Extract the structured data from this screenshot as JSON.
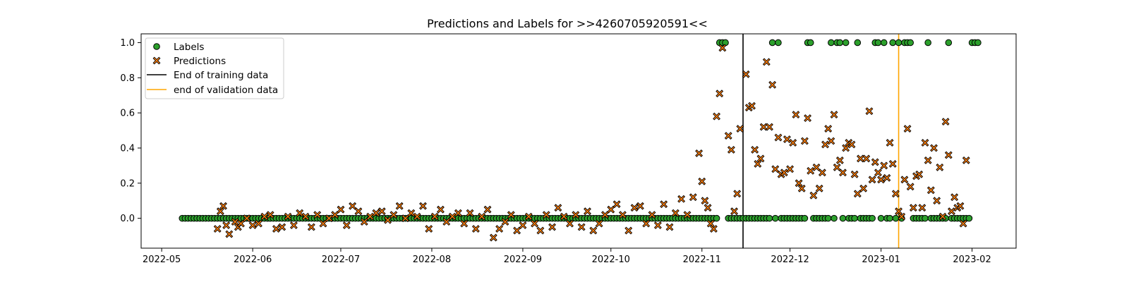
{
  "chart_data": {
    "type": "scatter",
    "title": "Predictions and Labels for >>4260705920591<<",
    "xlabel": "",
    "ylabel": "",
    "xlim": [
      "2022-04-24",
      "2023-02-16"
    ],
    "ylim": [
      -0.17,
      1.05
    ],
    "x_ticks": [
      "2022-05",
      "2022-06",
      "2022-07",
      "2022-08",
      "2022-09",
      "2022-10",
      "2022-11",
      "2022-12",
      "2023-01",
      "2023-02"
    ],
    "y_ticks": [
      "0.0",
      "0.2",
      "0.4",
      "0.6",
      "0.8",
      "1.0"
    ],
    "legend_position": "top-left",
    "grid": false,
    "colors": {
      "labels": "#2ca02c",
      "predictions": "#ff7f0e",
      "training_line": "#000000",
      "validation_line": "#ffa500"
    },
    "vlines": [
      {
        "name": "End of training data",
        "x": "2022-11-15"
      },
      {
        "name": "end of validation data",
        "x": "2023-01-07"
      }
    ],
    "label_date_range": [
      "2022-05-08",
      "2023-02-03"
    ],
    "label_one_dates": [
      "2022-11-07",
      "2022-11-08",
      "2022-11-09",
      "2022-11-25",
      "2022-11-27",
      "2022-12-07",
      "2022-12-08",
      "2022-12-15",
      "2022-12-17",
      "2022-12-18",
      "2022-12-20",
      "2022-12-24",
      "2022-12-30",
      "2022-12-31",
      "2023-01-02",
      "2023-01-05",
      "2023-01-07",
      "2023-01-09",
      "2023-01-10",
      "2023-01-11",
      "2023-01-17",
      "2023-01-24",
      "2023-02-01",
      "2023-02-02",
      "2023-02-03"
    ],
    "series": [
      {
        "name": "Labels",
        "marker": "circle",
        "points": []
      },
      {
        "name": "Predictions",
        "marker": "x",
        "points": [
          [
            "2022-05-20",
            -0.06
          ],
          [
            "2022-05-21",
            0.04
          ],
          [
            "2022-05-22",
            0.07
          ],
          [
            "2022-05-23",
            -0.04
          ],
          [
            "2022-05-24",
            -0.09
          ],
          [
            "2022-05-26",
            -0.02
          ],
          [
            "2022-05-27",
            -0.05
          ],
          [
            "2022-05-28",
            -0.03
          ],
          [
            "2022-05-30",
            0.0
          ],
          [
            "2022-06-01",
            -0.04
          ],
          [
            "2022-06-03",
            -0.03
          ],
          [
            "2022-06-05",
            0.01
          ],
          [
            "2022-06-07",
            0.02
          ],
          [
            "2022-06-09",
            -0.06
          ],
          [
            "2022-06-11",
            -0.05
          ],
          [
            "2022-06-13",
            0.01
          ],
          [
            "2022-06-15",
            -0.04
          ],
          [
            "2022-06-17",
            0.03
          ],
          [
            "2022-06-19",
            0.01
          ],
          [
            "2022-06-21",
            -0.05
          ],
          [
            "2022-06-23",
            0.02
          ],
          [
            "2022-06-25",
            -0.03
          ],
          [
            "2022-06-27",
            0.0
          ],
          [
            "2022-06-29",
            0.02
          ],
          [
            "2022-07-01",
            0.05
          ],
          [
            "2022-07-03",
            -0.04
          ],
          [
            "2022-07-05",
            0.07
          ],
          [
            "2022-07-07",
            0.04
          ],
          [
            "2022-07-09",
            -0.02
          ],
          [
            "2022-07-11",
            0.01
          ],
          [
            "2022-07-13",
            0.03
          ],
          [
            "2022-07-15",
            0.04
          ],
          [
            "2022-07-17",
            -0.01
          ],
          [
            "2022-07-19",
            0.02
          ],
          [
            "2022-07-21",
            0.07
          ],
          [
            "2022-07-23",
            0.0
          ],
          [
            "2022-07-25",
            0.03
          ],
          [
            "2022-07-27",
            0.01
          ],
          [
            "2022-07-29",
            0.07
          ],
          [
            "2022-07-31",
            -0.06
          ],
          [
            "2022-08-02",
            0.01
          ],
          [
            "2022-08-04",
            0.05
          ],
          [
            "2022-08-06",
            -0.02
          ],
          [
            "2022-08-08",
            0.01
          ],
          [
            "2022-08-10",
            0.03
          ],
          [
            "2022-08-12",
            -0.03
          ],
          [
            "2022-08-14",
            0.03
          ],
          [
            "2022-08-16",
            -0.06
          ],
          [
            "2022-08-18",
            0.01
          ],
          [
            "2022-08-20",
            0.05
          ],
          [
            "2022-08-22",
            -0.11
          ],
          [
            "2022-08-24",
            -0.06
          ],
          [
            "2022-08-26",
            -0.02
          ],
          [
            "2022-08-28",
            0.02
          ],
          [
            "2022-08-30",
            -0.07
          ],
          [
            "2022-09-01",
            -0.04
          ],
          [
            "2022-09-03",
            0.01
          ],
          [
            "2022-09-05",
            -0.03
          ],
          [
            "2022-09-07",
            -0.07
          ],
          [
            "2022-09-09",
            0.02
          ],
          [
            "2022-09-11",
            -0.05
          ],
          [
            "2022-09-13",
            0.06
          ],
          [
            "2022-09-15",
            0.01
          ],
          [
            "2022-09-17",
            -0.03
          ],
          [
            "2022-09-19",
            0.02
          ],
          [
            "2022-09-21",
            -0.05
          ],
          [
            "2022-09-23",
            0.04
          ],
          [
            "2022-09-25",
            -0.07
          ],
          [
            "2022-09-27",
            -0.03
          ],
          [
            "2022-09-29",
            0.02
          ],
          [
            "2022-10-01",
            0.05
          ],
          [
            "2022-10-03",
            0.08
          ],
          [
            "2022-10-05",
            0.02
          ],
          [
            "2022-10-07",
            -0.07
          ],
          [
            "2022-10-09",
            0.06
          ],
          [
            "2022-10-11",
            0.07
          ],
          [
            "2022-10-13",
            -0.03
          ],
          [
            "2022-10-15",
            0.02
          ],
          [
            "2022-10-17",
            -0.04
          ],
          [
            "2022-10-19",
            0.08
          ],
          [
            "2022-10-21",
            -0.05
          ],
          [
            "2022-10-23",
            0.03
          ],
          [
            "2022-10-25",
            0.11
          ],
          [
            "2022-10-27",
            0.02
          ],
          [
            "2022-10-29",
            0.12
          ],
          [
            "2022-10-31",
            0.37
          ],
          [
            "2022-11-01",
            0.21
          ],
          [
            "2022-11-02",
            0.1
          ],
          [
            "2022-11-03",
            0.06
          ],
          [
            "2022-11-04",
            -0.03
          ],
          [
            "2022-11-05",
            -0.06
          ],
          [
            "2022-11-06",
            0.58
          ],
          [
            "2022-11-07",
            0.71
          ],
          [
            "2022-11-08",
            0.97
          ],
          [
            "2022-11-10",
            0.47
          ],
          [
            "2022-11-11",
            0.39
          ],
          [
            "2022-11-12",
            0.04
          ],
          [
            "2022-11-13",
            0.14
          ],
          [
            "2022-11-14",
            0.51
          ],
          [
            "2022-11-16",
            0.82
          ],
          [
            "2022-11-17",
            0.63
          ],
          [
            "2022-11-18",
            0.64
          ],
          [
            "2022-11-19",
            0.39
          ],
          [
            "2022-11-20",
            0.31
          ],
          [
            "2022-11-21",
            0.34
          ],
          [
            "2022-11-22",
            0.52
          ],
          [
            "2022-11-23",
            0.89
          ],
          [
            "2022-11-24",
            0.52
          ],
          [
            "2022-11-25",
            0.76
          ],
          [
            "2022-11-26",
            0.28
          ],
          [
            "2022-11-27",
            0.46
          ],
          [
            "2022-11-28",
            0.25
          ],
          [
            "2022-11-29",
            0.26
          ],
          [
            "2022-11-30",
            0.45
          ],
          [
            "2022-12-01",
            0.28
          ],
          [
            "2022-12-02",
            0.43
          ],
          [
            "2022-12-03",
            0.59
          ],
          [
            "2022-12-04",
            0.2
          ],
          [
            "2022-12-05",
            0.17
          ],
          [
            "2022-12-06",
            0.44
          ],
          [
            "2022-12-07",
            0.57
          ],
          [
            "2022-12-08",
            0.27
          ],
          [
            "2022-12-09",
            0.13
          ],
          [
            "2022-12-10",
            0.29
          ],
          [
            "2022-12-11",
            0.17
          ],
          [
            "2022-12-12",
            0.26
          ],
          [
            "2022-12-13",
            0.42
          ],
          [
            "2022-12-14",
            0.51
          ],
          [
            "2022-12-15",
            0.44
          ],
          [
            "2022-12-16",
            0.59
          ],
          [
            "2022-12-17",
            0.29
          ],
          [
            "2022-12-18",
            0.33
          ],
          [
            "2022-12-19",
            0.26
          ],
          [
            "2022-12-20",
            0.4
          ],
          [
            "2022-12-21",
            0.43
          ],
          [
            "2022-12-22",
            0.42
          ],
          [
            "2022-12-23",
            0.25
          ],
          [
            "2022-12-24",
            0.14
          ],
          [
            "2022-12-25",
            0.34
          ],
          [
            "2022-12-26",
            0.17
          ],
          [
            "2022-12-27",
            0.34
          ],
          [
            "2022-12-28",
            0.61
          ],
          [
            "2022-12-29",
            0.22
          ],
          [
            "2022-12-30",
            0.32
          ],
          [
            "2022-12-31",
            0.26
          ],
          [
            "2023-01-01",
            0.22
          ],
          [
            "2023-01-02",
            0.3
          ],
          [
            "2023-01-03",
            0.23
          ],
          [
            "2023-01-04",
            0.43
          ],
          [
            "2023-01-05",
            0.31
          ],
          [
            "2023-01-06",
            0.14
          ],
          [
            "2023-01-07",
            0.04
          ],
          [
            "2023-01-08",
            0.01
          ],
          [
            "2023-01-09",
            0.22
          ],
          [
            "2023-01-10",
            0.51
          ],
          [
            "2023-01-11",
            0.18
          ],
          [
            "2023-01-12",
            0.06
          ],
          [
            "2023-01-13",
            0.24
          ],
          [
            "2023-01-14",
            0.25
          ],
          [
            "2023-01-15",
            0.06
          ],
          [
            "2023-01-16",
            0.43
          ],
          [
            "2023-01-17",
            0.33
          ],
          [
            "2023-01-18",
            0.16
          ],
          [
            "2023-01-19",
            0.4
          ],
          [
            "2023-01-20",
            0.1
          ],
          [
            "2023-01-21",
            0.29
          ],
          [
            "2023-01-22",
            0.01
          ],
          [
            "2023-01-23",
            0.55
          ],
          [
            "2023-01-24",
            0.36
          ],
          [
            "2023-01-25",
            0.04
          ],
          [
            "2023-01-26",
            0.12
          ],
          [
            "2023-01-27",
            0.06
          ],
          [
            "2023-01-28",
            0.07
          ],
          [
            "2023-01-29",
            -0.03
          ],
          [
            "2023-01-30",
            0.33
          ]
        ]
      }
    ]
  }
}
